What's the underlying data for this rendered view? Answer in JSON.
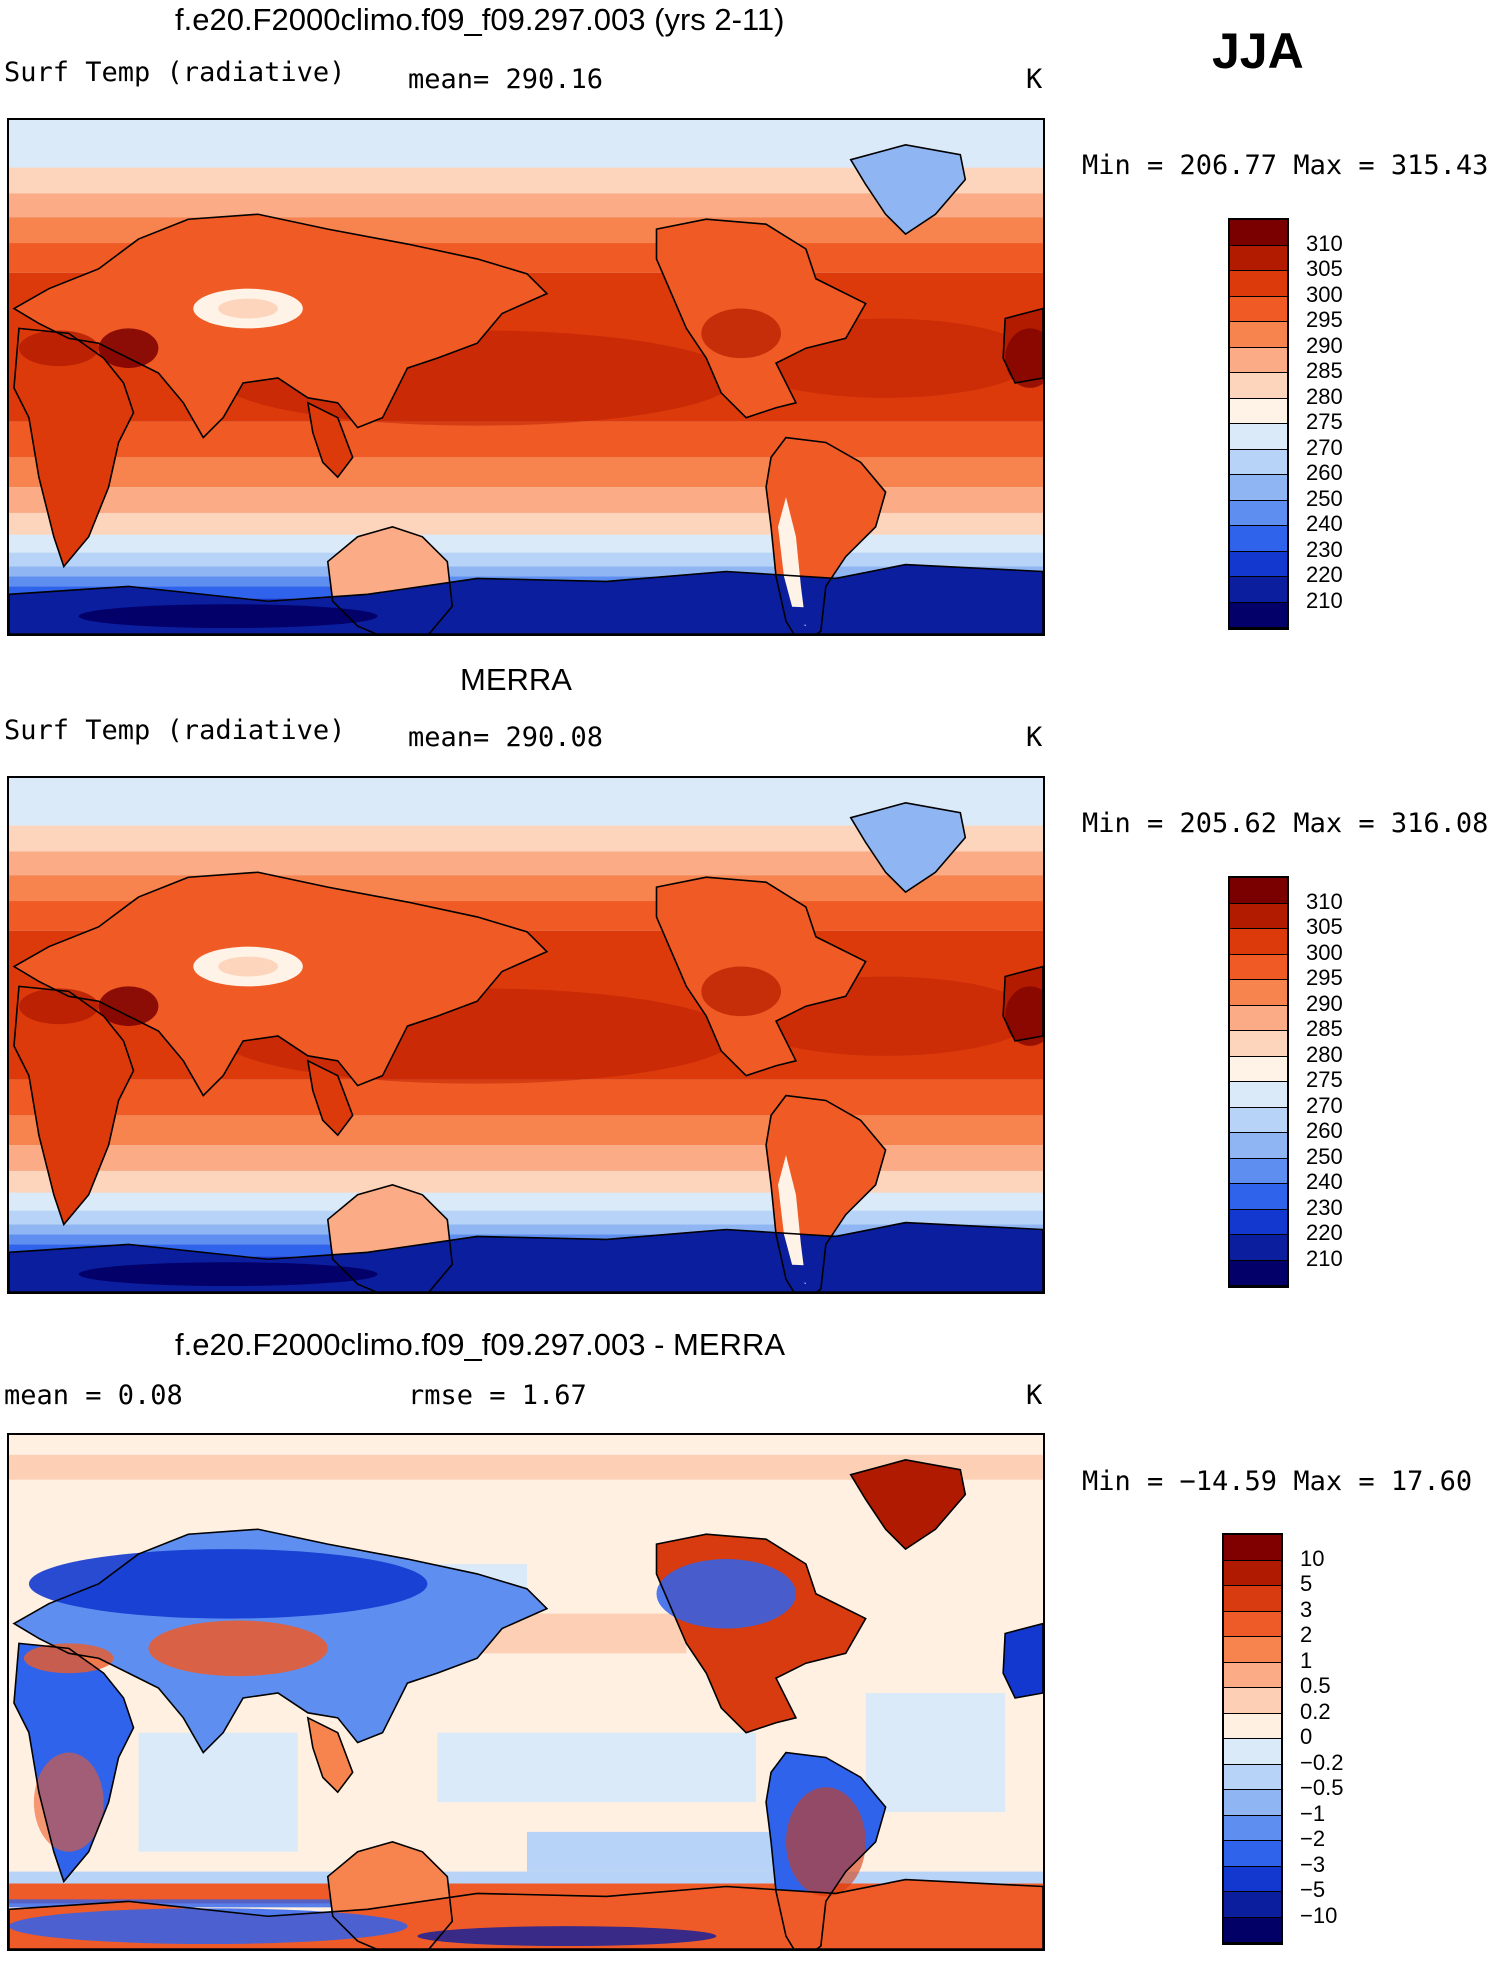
{
  "season": "JJA",
  "panels": [
    {
      "id": "model",
      "title": "f.e20.F2000climo.f09_f09.297.003 (yrs 2-11)",
      "variable": "Surf Temp (radiative)",
      "stat": "mean= 290.16",
      "units": "K",
      "minmax": "Min = 206.77 Max = 315.43",
      "map_type": "abs"
    },
    {
      "id": "obs",
      "title": "MERRA",
      "variable": "Surf Temp (radiative)",
      "stat": "mean= 290.08",
      "units": "K",
      "minmax": "Min = 205.62 Max = 316.08",
      "map_type": "abs"
    },
    {
      "id": "diff",
      "title": "f.e20.F2000climo.f09_f09.297.003 - MERRA",
      "variable": "mean =     0.08",
      "stat": "rmse =    1.67",
      "units": "K",
      "minmax": "Min = −14.59 Max =   17.60",
      "map_type": "diff"
    }
  ],
  "colorbars": {
    "abs": {
      "labels": [
        "310",
        "305",
        "300",
        "295",
        "290",
        "285",
        "280",
        "275",
        "270",
        "260",
        "250",
        "240",
        "230",
        "220",
        "210"
      ],
      "colors": [
        "#7a0000",
        "#b31b00",
        "#dd3a0c",
        "#f05a24",
        "#f7834f",
        "#fbab85",
        "#fdd5bd",
        "#fff2e6",
        "#dbeaf9",
        "#b7d3f7",
        "#8fb6f3",
        "#5e8ff0",
        "#2f63ec",
        "#1238d0",
        "#0a1e9e",
        "#03006a"
      ]
    },
    "diff": {
      "labels": [
        "10",
        "5",
        "3",
        "2",
        "1",
        "0.5",
        "0.2",
        "0",
        "−0.2",
        "−0.5",
        "−1",
        "−2",
        "−3",
        "−5",
        "−10"
      ],
      "colors": [
        "#800000",
        "#b01a00",
        "#d73b0f",
        "#ee5b28",
        "#f7844f",
        "#fbab85",
        "#fdd0b6",
        "#fff0e2",
        "#dbeaf9",
        "#b7d3f7",
        "#8fb6f3",
        "#5e8ff0",
        "#2f63ec",
        "#1238d0",
        "#0a1e9e",
        "#020066"
      ]
    }
  }
}
